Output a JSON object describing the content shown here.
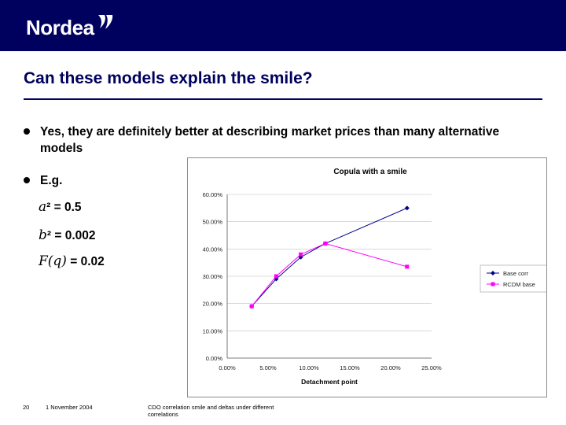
{
  "header": {
    "logo_text": "Nordea"
  },
  "slide": {
    "title": "Can these models explain the smile?",
    "bullets": [
      "Yes, they are definitely better at describing market prices than many alternative models",
      "E.g."
    ],
    "params": [
      {
        "symbol": "a",
        "text": "² = 0.5"
      },
      {
        "symbol": "b",
        "text": "² = 0.002"
      },
      {
        "symbol": "F(q)",
        "text": " = 0.02"
      }
    ]
  },
  "footer": {
    "page_number": "20",
    "date": "1 November 2004",
    "doc_title": "CDO correlation smile and deltas under different correlations"
  },
  "colors": {
    "brand": "#00005e",
    "series1": "#00008b",
    "series2": "#ff00ff",
    "grid": "#c0c0c0"
  },
  "chart_data": {
    "type": "line",
    "title": "Copula with a smile",
    "xlabel": "Detachment point",
    "ylabel": "",
    "xlim": [
      0,
      25
    ],
    "ylim": [
      0,
      60
    ],
    "xticks": [
      "0.00%",
      "5.00%",
      "10.00%",
      "15.00%",
      "20.00%",
      "25.00%"
    ],
    "yticks": [
      "0.00%",
      "10.00%",
      "20.00%",
      "30.00%",
      "40.00%",
      "50.00%",
      "60.00%"
    ],
    "legend_position": "right",
    "series": [
      {
        "name": "Base corr",
        "color": "#00008b",
        "marker": "diamond",
        "x": [
          3,
          6,
          9,
          12,
          22
        ],
        "y": [
          19,
          29,
          37,
          42,
          55
        ]
      },
      {
        "name": "RCDM base",
        "color": "#ff00ff",
        "marker": "square",
        "x": [
          3,
          6,
          9,
          12,
          22
        ],
        "y": [
          19,
          30,
          38,
          42,
          33.5
        ]
      }
    ]
  }
}
